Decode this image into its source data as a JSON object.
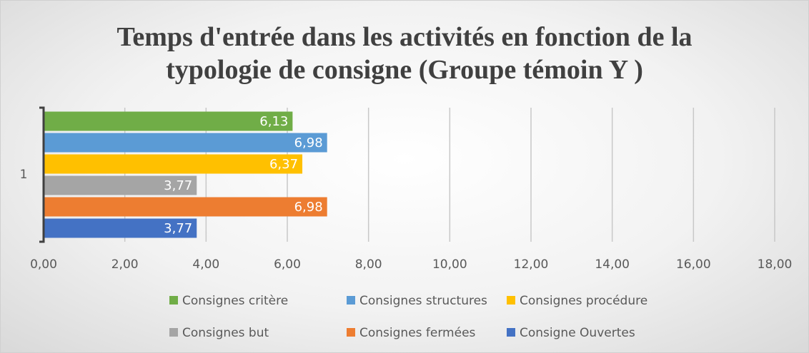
{
  "chart_data": {
    "type": "bar",
    "orientation": "horizontal",
    "title": "Temps d'entrée dans les activités en fonction de la typologie de consigne (Groupe témoin Y )",
    "categories": [
      "1"
    ],
    "series": [
      {
        "name": "Consignes critère",
        "color": "#70ad47",
        "values": [
          6.13
        ],
        "value_labels": [
          "6,13"
        ]
      },
      {
        "name": "Consignes structures",
        "color": "#5b9bd5",
        "values": [
          6.98
        ],
        "value_labels": [
          "6,98"
        ]
      },
      {
        "name": "Consignes procédure",
        "color": "#ffc000",
        "values": [
          6.37
        ],
        "value_labels": [
          "6,37"
        ]
      },
      {
        "name": "Consignes but",
        "color": "#a5a5a5",
        "values": [
          3.77
        ],
        "value_labels": [
          "3,77"
        ]
      },
      {
        "name": "Consignes fermées",
        "color": "#ed7d31",
        "values": [
          6.98
        ],
        "value_labels": [
          "6,98"
        ]
      },
      {
        "name": "Consigne Ouvertes",
        "color": "#4472c4",
        "values": [
          3.77
        ],
        "value_labels": [
          "3,77"
        ]
      }
    ],
    "xlim": [
      0,
      18
    ],
    "xticks": [
      {
        "value": 0,
        "label": "0,00"
      },
      {
        "value": 2,
        "label": "2,00"
      },
      {
        "value": 4,
        "label": "4,00"
      },
      {
        "value": 6,
        "label": "6,00"
      },
      {
        "value": 8,
        "label": "8,00"
      },
      {
        "value": 10,
        "label": "10,00"
      },
      {
        "value": 12,
        "label": "12,00"
      },
      {
        "value": 14,
        "label": "14,00"
      },
      {
        "value": 16,
        "label": "16,00"
      },
      {
        "value": 18,
        "label": "18,00"
      }
    ],
    "grid": true,
    "legend": "bottom"
  }
}
